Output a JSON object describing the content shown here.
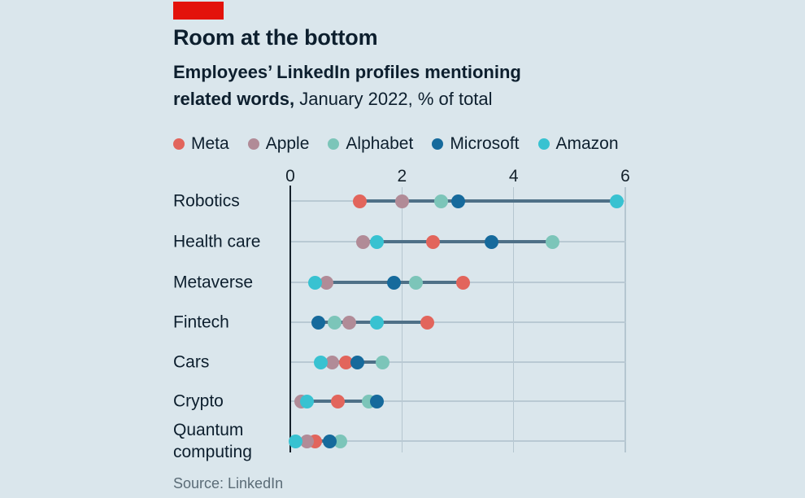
{
  "header": {
    "title": "Room at the bottom",
    "subtitle_line1": "Employees’ LinkedIn profiles mentioning",
    "subtitle_line2_bold": "related words,",
    "subtitle_line2_regular": "January 2022, % of total"
  },
  "colors": {
    "brand_red": "#e3120b",
    "background": "#dae6ec",
    "text_dark": "#0d1f2e",
    "text_muted": "#5b6c77",
    "axis_zero_line": "#16212b",
    "grid_line": "#b5c6d0",
    "range_line": "#4e7087"
  },
  "source": "Source: LinkedIn",
  "chart_data": {
    "type": "scatter",
    "variant": "horizontal-dot-plot",
    "title": "Room at the bottom",
    "subtitle": "Employees’ LinkedIn profiles mentioning related words, January 2022, % of total",
    "xlabel": "% of total",
    "ylabel": "",
    "xlim": [
      0,
      6
    ],
    "xticks": [
      "0",
      "2",
      "4",
      "6"
    ],
    "grid": "vertical gridlines at ticks, light horizontal line per category row, dark range line connecting min to max dot",
    "legend_position": "top",
    "categories": [
      "Robotics",
      "Health care",
      "Metaverse",
      "Fintech",
      "Cars",
      "Crypto",
      "Quantum computing"
    ],
    "series": [
      {
        "name": "Meta",
        "color": "#e2655c",
        "values": [
          1.25,
          2.55,
          3.1,
          2.45,
          1.0,
          0.85,
          0.45
        ]
      },
      {
        "name": "Apple",
        "color": "#b18b97",
        "values": [
          2.0,
          1.3,
          0.65,
          1.05,
          0.75,
          0.2,
          0.3
        ]
      },
      {
        "name": "Alphabet",
        "color": "#7cc5b9",
        "values": [
          2.7,
          4.7,
          2.25,
          0.8,
          1.65,
          1.4,
          0.9
        ]
      },
      {
        "name": "Microsoft",
        "color": "#166a9c",
        "values": [
          3.0,
          3.6,
          1.85,
          0.5,
          1.2,
          1.55,
          0.7
        ]
      },
      {
        "name": "Amazon",
        "color": "#38c2d1",
        "values": [
          5.85,
          1.55,
          0.45,
          1.55,
          0.55,
          0.3,
          0.1
        ]
      }
    ]
  }
}
